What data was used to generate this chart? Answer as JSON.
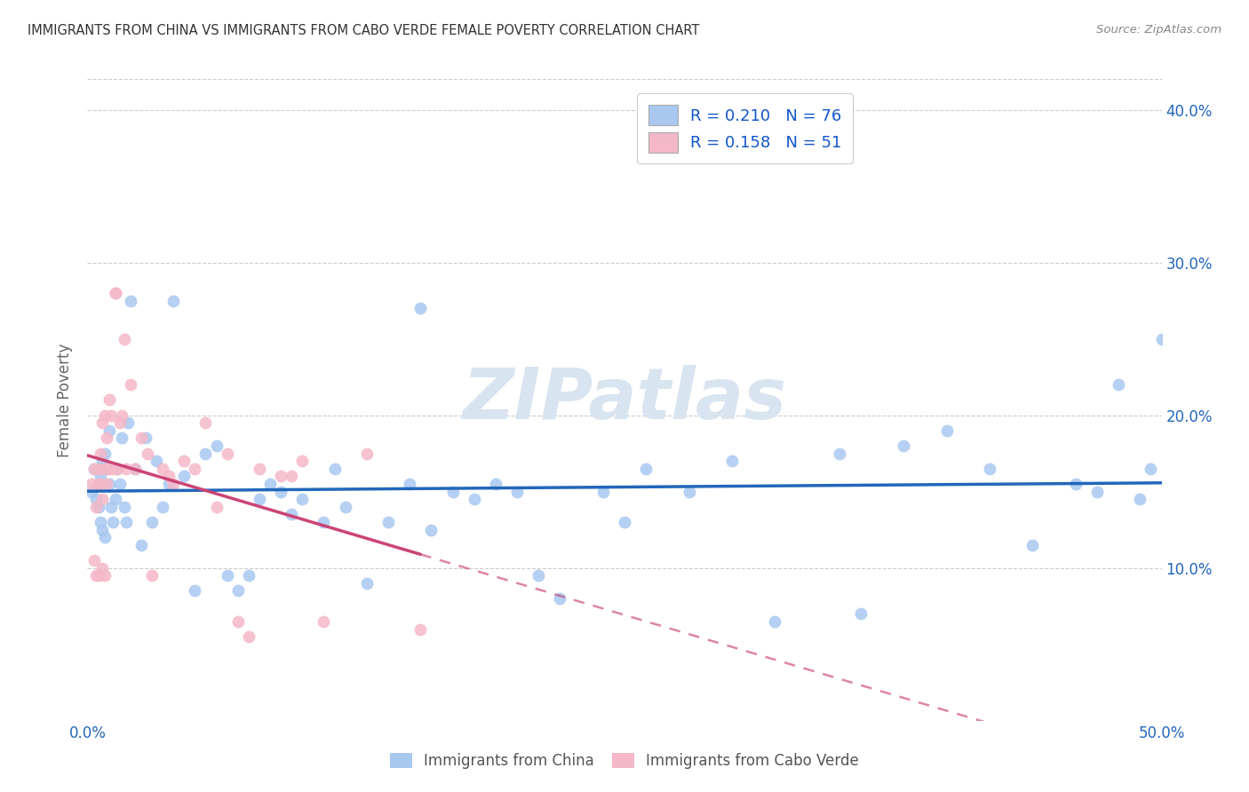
{
  "title": "IMMIGRANTS FROM CHINA VS IMMIGRANTS FROM CABO VERDE FEMALE POVERTY CORRELATION CHART",
  "source": "Source: ZipAtlas.com",
  "ylabel": "Female Poverty",
  "xlim": [
    0,
    0.5
  ],
  "ylim": [
    0,
    0.42
  ],
  "xticks": [
    0.0,
    0.1,
    0.2,
    0.3,
    0.4,
    0.5
  ],
  "yticks": [
    0.1,
    0.2,
    0.3,
    0.4
  ],
  "xtick_labels": [
    "0.0%",
    "",
    "",
    "",
    "",
    "50.0%"
  ],
  "ytick_labels_right": [
    "10.0%",
    "20.0%",
    "30.0%",
    "40.0%"
  ],
  "china_color": "#A8C8F0",
  "cabo_verde_color": "#F5B8C8",
  "china_line_color": "#2266BB",
  "cabo_verde_line_color": "#CC4477",
  "R_china": 0.21,
  "N_china": 76,
  "R_cabo": 0.158,
  "N_cabo": 51,
  "legend_color": "#1155CC",
  "N_color": "#22AA44",
  "background_color": "#ffffff",
  "grid_color": "#cccccc",
  "title_color": "#333333",
  "watermark_color": "#D8E4F0",
  "china_x": [
    0.002,
    0.003,
    0.004,
    0.005,
    0.005,
    0.006,
    0.006,
    0.007,
    0.007,
    0.008,
    0.008,
    0.009,
    0.01,
    0.01,
    0.011,
    0.012,
    0.013,
    0.014,
    0.015,
    0.016,
    0.017,
    0.018,
    0.019,
    0.02,
    0.022,
    0.025,
    0.027,
    0.03,
    0.032,
    0.035,
    0.038,
    0.04,
    0.045,
    0.05,
    0.055,
    0.06,
    0.065,
    0.07,
    0.075,
    0.08,
    0.085,
    0.09,
    0.095,
    0.1,
    0.11,
    0.115,
    0.12,
    0.13,
    0.14,
    0.15,
    0.155,
    0.16,
    0.17,
    0.18,
    0.19,
    0.2,
    0.21,
    0.22,
    0.24,
    0.25,
    0.26,
    0.28,
    0.3,
    0.32,
    0.35,
    0.36,
    0.38,
    0.4,
    0.42,
    0.44,
    0.46,
    0.47,
    0.48,
    0.49,
    0.495,
    0.5
  ],
  "china_y": [
    0.15,
    0.165,
    0.145,
    0.155,
    0.14,
    0.16,
    0.13,
    0.17,
    0.125,
    0.175,
    0.12,
    0.165,
    0.155,
    0.19,
    0.14,
    0.13,
    0.145,
    0.165,
    0.155,
    0.185,
    0.14,
    0.13,
    0.195,
    0.275,
    0.165,
    0.115,
    0.185,
    0.13,
    0.17,
    0.14,
    0.155,
    0.275,
    0.16,
    0.085,
    0.175,
    0.18,
    0.095,
    0.085,
    0.095,
    0.145,
    0.155,
    0.15,
    0.135,
    0.145,
    0.13,
    0.165,
    0.14,
    0.09,
    0.13,
    0.155,
    0.27,
    0.125,
    0.15,
    0.145,
    0.155,
    0.15,
    0.095,
    0.08,
    0.15,
    0.13,
    0.165,
    0.15,
    0.17,
    0.065,
    0.175,
    0.07,
    0.18,
    0.19,
    0.165,
    0.115,
    0.155,
    0.15,
    0.22,
    0.145,
    0.165,
    0.25
  ],
  "cabo_x": [
    0.002,
    0.003,
    0.003,
    0.004,
    0.004,
    0.005,
    0.005,
    0.005,
    0.006,
    0.006,
    0.007,
    0.007,
    0.007,
    0.008,
    0.008,
    0.008,
    0.009,
    0.009,
    0.01,
    0.01,
    0.011,
    0.012,
    0.013,
    0.013,
    0.014,
    0.015,
    0.016,
    0.017,
    0.018,
    0.02,
    0.022,
    0.025,
    0.028,
    0.03,
    0.035,
    0.038,
    0.04,
    0.045,
    0.05,
    0.055,
    0.06,
    0.065,
    0.07,
    0.075,
    0.08,
    0.09,
    0.095,
    0.1,
    0.11,
    0.13,
    0.155
  ],
  "cabo_y": [
    0.155,
    0.105,
    0.165,
    0.14,
    0.095,
    0.155,
    0.165,
    0.095,
    0.175,
    0.155,
    0.195,
    0.145,
    0.1,
    0.165,
    0.2,
    0.095,
    0.185,
    0.155,
    0.21,
    0.165,
    0.2,
    0.165,
    0.28,
    0.28,
    0.165,
    0.195,
    0.2,
    0.25,
    0.165,
    0.22,
    0.165,
    0.185,
    0.175,
    0.095,
    0.165,
    0.16,
    0.155,
    0.17,
    0.165,
    0.195,
    0.14,
    0.175,
    0.065,
    0.055,
    0.165,
    0.16,
    0.16,
    0.17,
    0.065,
    0.175,
    0.06
  ]
}
